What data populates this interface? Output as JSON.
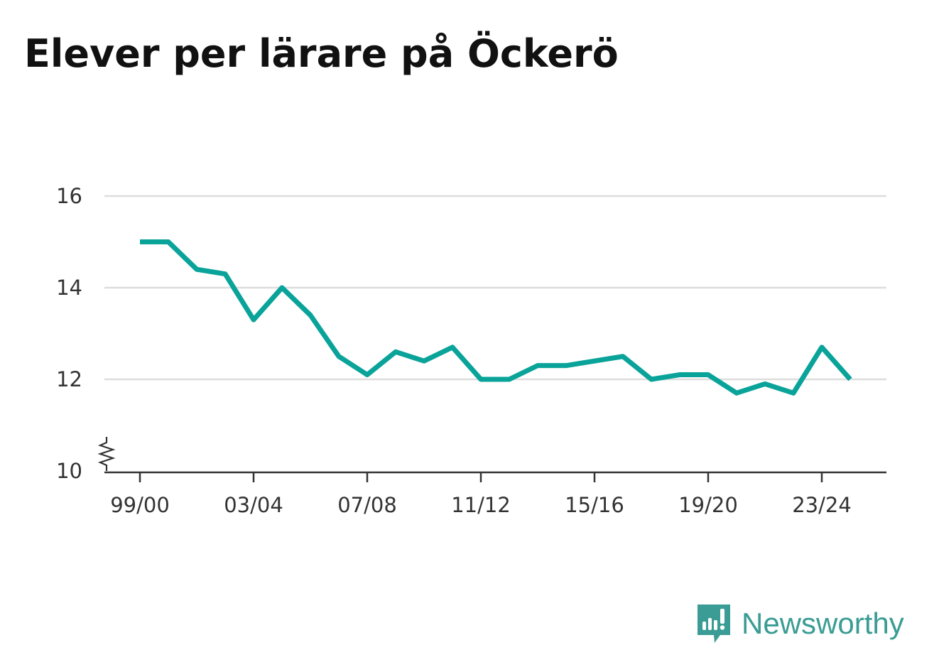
{
  "title": "Elever per lärare på Öckerö",
  "brand": {
    "name": "Newsworthy",
    "icon": "newsworthy-logo-icon"
  },
  "colors": {
    "line": "#0aa39a",
    "grid": "#dddddd",
    "axis": "#333333",
    "brand": "#3a9c94"
  },
  "chart_data": {
    "type": "line",
    "title": "Elever per lärare på Öckerö",
    "xlabel": "",
    "ylabel": "",
    "x": [
      "99/00",
      "00/01",
      "01/02",
      "02/03",
      "03/04",
      "04/05",
      "05/06",
      "06/07",
      "07/08",
      "08/09",
      "09/10",
      "10/11",
      "11/12",
      "12/13",
      "13/14",
      "14/15",
      "15/16",
      "16/17",
      "17/18",
      "18/19",
      "19/20",
      "20/21",
      "21/22",
      "22/23",
      "23/24",
      "24/25"
    ],
    "xticks": [
      "99/00",
      "03/04",
      "07/08",
      "11/12",
      "15/16",
      "19/20",
      "23/24"
    ],
    "yticks": [
      "10",
      "12",
      "14",
      "16"
    ],
    "ylim": [
      10,
      16
    ],
    "y_axis_break": true,
    "grid": true,
    "series": [
      {
        "values": [
          15.0,
          15.0,
          14.4,
          14.3,
          13.3,
          14.0,
          13.4,
          12.5,
          12.1,
          12.6,
          12.4,
          12.7,
          12.0,
          12.0,
          12.3,
          12.3,
          12.4,
          12.5,
          12.0,
          12.1,
          12.1,
          11.7,
          11.9,
          11.7,
          12.7,
          12.0
        ]
      }
    ]
  }
}
